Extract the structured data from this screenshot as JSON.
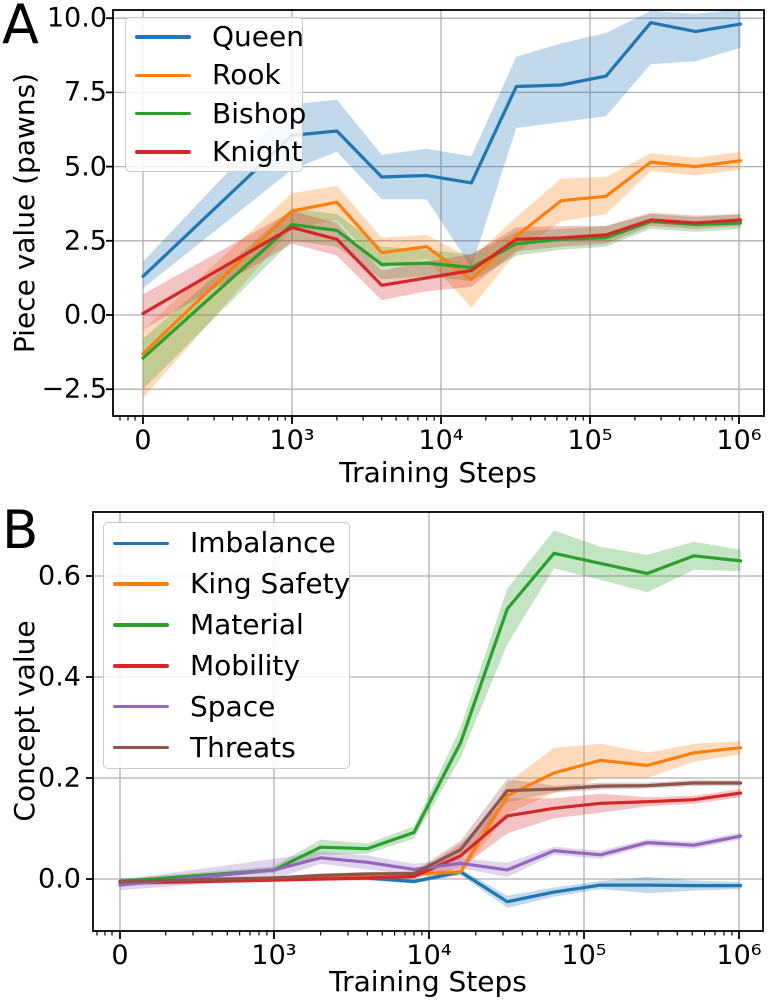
{
  "figure": {
    "background": "#ffffff",
    "grid_color": "#b0b0b0",
    "spine_color": "#000000",
    "band_opacity": 0.28
  },
  "chart_data": [
    {
      "id": "A",
      "type": "line",
      "panel_label": "A",
      "xlabel": "Training Steps",
      "ylabel": "Piece value (pawns)",
      "x_scale": "symlog",
      "grid": true,
      "legend_position": "upper left",
      "ylim": [
        -3.4,
        10.25
      ],
      "x": [
        0,
        1000,
        2000,
        4000,
        8000,
        16000,
        32000,
        64000,
        128000,
        256000,
        512000,
        1024000
      ],
      "x_tick_values": [
        0,
        1000,
        10000,
        100000,
        1000000
      ],
      "x_tick_labels": [
        "0",
        "10³",
        "10⁴",
        "10⁵",
        "10⁶"
      ],
      "y_tick_values": [
        10.0,
        7.5,
        5.0,
        2.5,
        0.0,
        -2.5
      ],
      "y_tick_labels": [
        "10.0",
        "7.5",
        "5.0",
        "2.5",
        "0.0",
        "−2.5"
      ],
      "series": [
        {
          "name": "Queen",
          "color": "#1f77b4",
          "values": [
            1.3,
            6.05,
            6.2,
            4.65,
            4.7,
            4.45,
            7.7,
            7.75,
            8.05,
            9.85,
            9.55,
            9.8
          ],
          "band_lower": [
            0.9,
            4.9,
            5.5,
            3.9,
            3.9,
            1.6,
            6.3,
            6.5,
            6.7,
            8.45,
            8.55,
            9.0
          ],
          "band_upper": [
            1.8,
            7.1,
            7.25,
            5.4,
            5.6,
            5.35,
            8.7,
            9.15,
            9.5,
            10.25,
            10.15,
            10.3
          ]
        },
        {
          "name": "Rook",
          "color": "#ff7f0e",
          "values": [
            -1.3,
            3.5,
            3.8,
            2.1,
            2.3,
            1.2,
            2.65,
            3.85,
            4.0,
            5.15,
            5.0,
            5.2
          ],
          "band_lower": [
            -2.8,
            2.9,
            3.2,
            1.6,
            1.9,
            0.25,
            2.1,
            3.15,
            3.4,
            4.85,
            4.7,
            4.9
          ],
          "band_upper": [
            -0.5,
            4.1,
            4.35,
            2.6,
            2.7,
            1.9,
            3.3,
            4.6,
            4.65,
            5.45,
            5.3,
            5.5
          ]
        },
        {
          "name": "Bishop",
          "color": "#2ca02c",
          "values": [
            -1.45,
            3.05,
            2.85,
            1.7,
            1.75,
            1.6,
            2.4,
            2.55,
            2.6,
            3.15,
            3.05,
            3.1
          ],
          "band_lower": [
            -2.5,
            2.5,
            2.3,
            1.2,
            1.3,
            1.15,
            2.0,
            2.2,
            2.3,
            2.9,
            2.8,
            2.9
          ],
          "band_upper": [
            -0.8,
            3.6,
            3.4,
            2.3,
            2.2,
            2.05,
            2.8,
            2.9,
            3.0,
            3.4,
            3.3,
            3.4
          ]
        },
        {
          "name": "Knight",
          "color": "#d62728",
          "values": [
            0.05,
            2.95,
            2.55,
            1.0,
            1.25,
            1.5,
            2.55,
            2.6,
            2.7,
            3.2,
            3.1,
            3.2
          ],
          "band_lower": [
            -0.5,
            2.4,
            2.0,
            0.5,
            0.8,
            0.95,
            2.15,
            2.3,
            2.4,
            3.0,
            2.9,
            3.0
          ],
          "band_upper": [
            0.7,
            3.5,
            3.1,
            1.5,
            1.8,
            2.05,
            2.95,
            3.0,
            3.0,
            3.45,
            3.35,
            3.4
          ]
        }
      ]
    },
    {
      "id": "B",
      "type": "line",
      "panel_label": "B",
      "xlabel": "Training Steps",
      "ylabel": "Concept value",
      "x_scale": "symlog",
      "grid": true,
      "legend_position": "upper left",
      "ylim": [
        -0.103,
        0.727
      ],
      "x": [
        0,
        1000,
        2000,
        4000,
        8000,
        16000,
        32000,
        64000,
        128000,
        256000,
        512000,
        1024000
      ],
      "x_tick_values": [
        0,
        1000,
        10000,
        100000,
        1000000
      ],
      "x_tick_labels": [
        "0",
        "10³",
        "10⁴",
        "10⁵",
        "10⁶"
      ],
      "y_tick_values": [
        0.6,
        0.4,
        0.2,
        0.0
      ],
      "y_tick_labels": [
        "0.6",
        "0.4",
        "0.2",
        "0.0"
      ],
      "series": [
        {
          "name": "Imbalance",
          "color": "#1f77b4",
          "values": [
            -0.005,
            0.0,
            0.002,
            0.002,
            -0.005,
            0.014,
            -0.045,
            -0.026,
            -0.012,
            -0.012,
            -0.013,
            -0.013
          ],
          "band_lower": [
            -0.012,
            -0.005,
            -0.003,
            -0.003,
            -0.009,
            0.008,
            -0.057,
            -0.035,
            -0.02,
            -0.028,
            -0.023,
            -0.02
          ],
          "band_upper": [
            0.002,
            0.005,
            0.007,
            0.007,
            -0.001,
            0.02,
            -0.033,
            -0.017,
            -0.004,
            0.004,
            -0.003,
            -0.006
          ]
        },
        {
          "name": "King Safety",
          "color": "#ff7f0e",
          "values": [
            -0.005,
            0.002,
            0.004,
            0.006,
            0.01,
            0.014,
            0.165,
            0.21,
            0.235,
            0.225,
            0.25,
            0.26
          ],
          "band_lower": [
            -0.01,
            -0.002,
            0.0,
            0.002,
            0.006,
            0.007,
            0.13,
            0.17,
            0.2,
            0.2,
            0.232,
            0.247
          ],
          "band_upper": [
            0.0,
            0.006,
            0.008,
            0.01,
            0.014,
            0.021,
            0.19,
            0.26,
            0.268,
            0.25,
            0.268,
            0.273
          ]
        },
        {
          "name": "Material",
          "color": "#2ca02c",
          "values": [
            -0.005,
            0.018,
            0.063,
            0.06,
            0.092,
            0.27,
            0.535,
            0.645,
            0.625,
            0.605,
            0.64,
            0.63
          ],
          "band_lower": [
            -0.01,
            0.012,
            0.048,
            0.05,
            0.08,
            0.24,
            0.465,
            0.615,
            0.592,
            0.568,
            0.612,
            0.61
          ],
          "band_upper": [
            0.0,
            0.025,
            0.078,
            0.07,
            0.104,
            0.3,
            0.575,
            0.69,
            0.658,
            0.642,
            0.668,
            0.652
          ]
        },
        {
          "name": "Mobility",
          "color": "#d62728",
          "values": [
            -0.008,
            -0.002,
            0.0,
            0.002,
            0.005,
            0.046,
            0.125,
            0.14,
            0.15,
            0.153,
            0.157,
            0.17
          ],
          "band_lower": [
            -0.013,
            -0.006,
            -0.004,
            -0.002,
            0.001,
            0.022,
            0.09,
            0.12,
            0.131,
            0.144,
            0.149,
            0.162
          ],
          "band_upper": [
            -0.003,
            0.002,
            0.004,
            0.006,
            0.009,
            0.07,
            0.16,
            0.16,
            0.169,
            0.162,
            0.165,
            0.178
          ]
        },
        {
          "name": "Space",
          "color": "#9467bd",
          "values": [
            -0.012,
            0.018,
            0.042,
            0.033,
            0.019,
            0.031,
            0.018,
            0.056,
            0.048,
            0.072,
            0.067,
            0.085
          ],
          "band_lower": [
            -0.022,
            0.0,
            0.03,
            0.019,
            0.008,
            0.021,
            0.004,
            0.048,
            0.04,
            0.065,
            0.06,
            0.078
          ],
          "band_upper": [
            -0.002,
            0.04,
            0.054,
            0.047,
            0.03,
            0.041,
            0.032,
            0.064,
            0.056,
            0.079,
            0.074,
            0.092
          ]
        },
        {
          "name": "Threats",
          "color": "#8c564b",
          "values": [
            -0.005,
            0.002,
            0.007,
            0.01,
            0.011,
            0.058,
            0.175,
            0.178,
            0.184,
            0.185,
            0.19,
            0.19
          ],
          "band_lower": [
            -0.009,
            -0.001,
            0.003,
            0.006,
            0.007,
            0.04,
            0.152,
            0.171,
            0.177,
            0.179,
            0.184,
            0.185
          ],
          "band_upper": [
            -0.001,
            0.005,
            0.011,
            0.014,
            0.015,
            0.076,
            0.198,
            0.185,
            0.191,
            0.191,
            0.196,
            0.195
          ]
        }
      ]
    }
  ]
}
